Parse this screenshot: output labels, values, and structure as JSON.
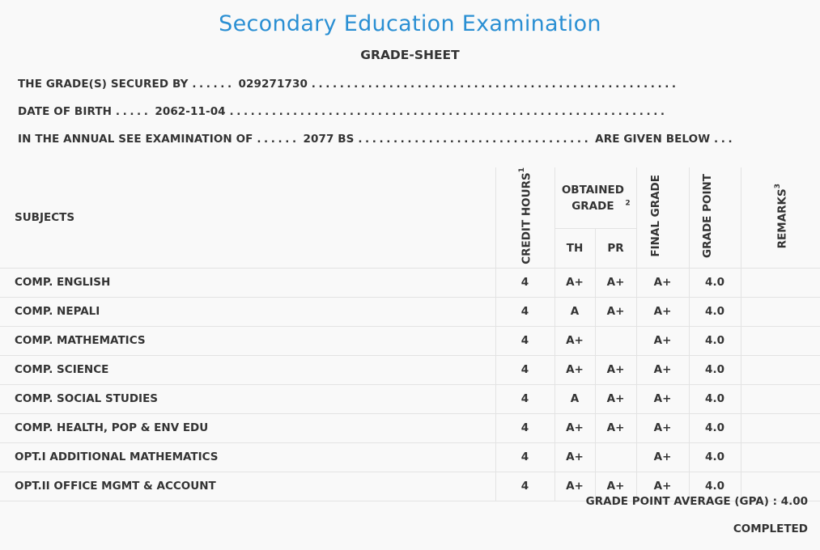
{
  "header": {
    "title": "Secondary Education Examination",
    "subtitle": "GRADE-SHEET"
  },
  "info": {
    "secured_by_label": "THE GRADE(S) SECURED BY",
    "symbol_number": "029271730",
    "dob_label": "DATE OF BIRTH",
    "dob": "2062-11-04",
    "exam_label": "IN THE ANNUAL SEE EXAMINATION OF",
    "exam_year": "2077 BS",
    "given_below": "ARE GIVEN BELOW"
  },
  "table": {
    "headers": {
      "subjects": "SUBJECTS",
      "credit_hours": "CREDIT HOURS",
      "credit_sup": "1",
      "obtained_grade": "OBTAINED GRADE",
      "obtained_sup": "2",
      "th": "TH",
      "pr": "PR",
      "final_grade": "FINAL GRADE",
      "grade_point": "GRADE POINT",
      "remarks": "REMARKS",
      "remarks_sup": "3"
    },
    "rows": [
      {
        "subject": "COMP. ENGLISH",
        "credit": "4",
        "th": "A+",
        "pr": "A+",
        "final": "A+",
        "gp": "4.0",
        "remarks": ""
      },
      {
        "subject": "COMP. NEPALI",
        "credit": "4",
        "th": "A",
        "pr": "A+",
        "final": "A+",
        "gp": "4.0",
        "remarks": ""
      },
      {
        "subject": "COMP. MATHEMATICS",
        "credit": "4",
        "th": "A+",
        "pr": "",
        "final": "A+",
        "gp": "4.0",
        "remarks": ""
      },
      {
        "subject": "COMP. SCIENCE",
        "credit": "4",
        "th": "A+",
        "pr": "A+",
        "final": "A+",
        "gp": "4.0",
        "remarks": ""
      },
      {
        "subject": "COMP. SOCIAL STUDIES",
        "credit": "4",
        "th": "A",
        "pr": "A+",
        "final": "A+",
        "gp": "4.0",
        "remarks": ""
      },
      {
        "subject": "COMP. HEALTH, POP & ENV EDU",
        "credit": "4",
        "th": "A+",
        "pr": "A+",
        "final": "A+",
        "gp": "4.0",
        "remarks": ""
      },
      {
        "subject": "OPT.I ADDITIONAL MATHEMATICS",
        "credit": "4",
        "th": "A+",
        "pr": "",
        "final": "A+",
        "gp": "4.0",
        "remarks": ""
      },
      {
        "subject": "OPT.II OFFICE MGMT & ACCOUNT",
        "credit": "4",
        "th": "A+",
        "pr": "A+",
        "final": "A+",
        "gp": "4.0",
        "remarks": ""
      }
    ]
  },
  "summary": {
    "gpa_label": "GRADE POINT AVERAGE (GPA) :",
    "gpa": "4.00",
    "status": "COMPLETED"
  }
}
